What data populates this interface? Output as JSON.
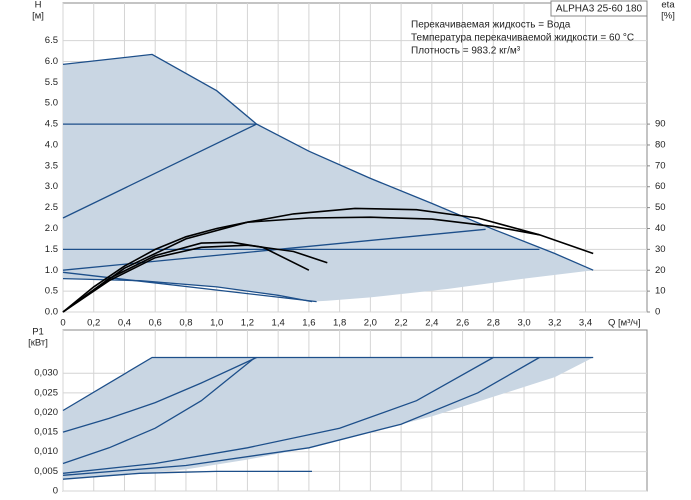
{
  "chart_data": [
    {
      "type": "line",
      "title": "ALPHA3 25-60 180",
      "annotations": [
        "Перекачиваемая жидкость = Вода",
        "Температура перекачиваемой жидкости = 60 °C",
        "Плотность = 983.2 кг/м³"
      ],
      "y_label": [
        "H",
        "[м]"
      ],
      "y2_label": [
        "eta",
        "[%]"
      ],
      "x_label": "Q [м³/ч]",
      "xlim": [
        0,
        3.8
      ],
      "ylim": [
        0,
        7.4
      ],
      "y2lim": [
        0,
        148
      ],
      "xticks": [
        0,
        {
          "value": 0.2,
          "label": "0,2"
        },
        {
          "value": 0.4,
          "label": "0,4"
        },
        {
          "value": 0.6,
          "label": "0,6"
        },
        {
          "value": 0.8,
          "label": "0,8"
        },
        {
          "value": 1.0,
          "label": "1,0"
        },
        {
          "value": 1.2,
          "label": "1,2"
        },
        {
          "value": 1.4,
          "label": "1,4"
        },
        {
          "value": 1.6,
          "label": "1,6"
        },
        {
          "value": 1.8,
          "label": "1,8"
        },
        {
          "value": 2.0,
          "label": "2,0"
        },
        {
          "value": 2.2,
          "label": "2,2"
        },
        {
          "value": 2.4,
          "label": "2,4"
        },
        {
          "value": 2.6,
          "label": "2,6"
        },
        {
          "value": 2.8,
          "label": "2,8"
        },
        {
          "value": 3.0,
          "label": "3,0"
        },
        {
          "value": 3.2,
          "label": "3,2"
        },
        {
          "value": 3.4,
          "label": "3,4"
        }
      ],
      "yticks": [
        {
          "value": 0,
          "label": "0.0"
        },
        0.5,
        {
          "value": 1,
          "label": "1.0"
        },
        1.5,
        {
          "value": 2,
          "label": "2.0"
        },
        2.5,
        {
          "value": 3,
          "label": "3.0"
        },
        3.5,
        {
          "value": 4,
          "label": "4.0"
        },
        4.5,
        {
          "value": 5,
          "label": "5.0"
        },
        5.5,
        {
          "value": 6,
          "label": "6.0"
        },
        6.5
      ],
      "y2ticks": [
        0,
        10,
        20,
        30,
        40,
        50,
        60,
        70,
        80,
        90
      ],
      "grid": true,
      "series": [
        {
          "color": "#c9d6e3",
          "fill": true,
          "x": [
            0,
            0.58,
            1.0,
            1.26,
            1.6,
            2.0,
            2.4,
            2.8,
            3.2,
            3.45,
            3.0,
            2.5,
            2.0,
            1.72,
            1.62,
            1.4,
            1.0,
            0.5,
            0
          ],
          "values": [
            5.93,
            6.17,
            5.3,
            4.5,
            3.85,
            3.2,
            2.6,
            1.98,
            1.4,
            1.0,
            0.8,
            0.55,
            0.35,
            0.27,
            0.25,
            0.4,
            0.6,
            0.75,
            0.8
          ]
        },
        {
          "color": "#1d4f8a",
          "x": [
            0,
            0.58,
            1.0,
            1.26,
            1.6,
            2.0,
            2.4,
            2.8,
            3.2,
            3.45
          ],
          "values": [
            5.93,
            6.17,
            5.3,
            4.5,
            3.85,
            3.2,
            2.6,
            1.98,
            1.4,
            1.0
          ]
        },
        {
          "color": "#1d4f8a",
          "x": [
            0,
            1.26
          ],
          "values": [
            4.5,
            4.5
          ]
        },
        {
          "color": "#1d4f8a",
          "x": [
            0,
            1.26
          ],
          "values": [
            2.25,
            4.5
          ]
        },
        {
          "color": "#1d4f8a",
          "x": [
            0,
            3.1
          ],
          "values": [
            1.5,
            1.5
          ]
        },
        {
          "color": "#1d4f8a",
          "x": [
            0,
            2.75
          ],
          "values": [
            1.0,
            1.98
          ]
        },
        {
          "color": "#1d4f8a",
          "x": [
            0,
            1.65
          ],
          "values": [
            0.95,
            0.25
          ]
        },
        {
          "color": "#1d4f8a",
          "x": [
            0,
            0.5,
            1.0,
            1.4,
            1.62
          ],
          "values": [
            0.8,
            0.75,
            0.6,
            0.4,
            0.25
          ]
        },
        {
          "color": "#000000",
          "axis": "y2",
          "x": [
            0,
            0.2,
            0.4,
            0.6,
            0.8,
            1.0,
            1.2,
            1.5,
            1.9,
            2.3,
            2.7,
            3.1,
            3.45
          ],
          "values": [
            0,
            12,
            22,
            30,
            36,
            40,
            43,
            47,
            49.6,
            49,
            45,
            37,
            28
          ]
        },
        {
          "color": "#000000",
          "axis": "y2",
          "x": [
            0,
            0.4,
            0.8,
            1.2,
            1.6,
            2.0,
            2.4,
            2.8,
            3.1
          ],
          "values": [
            0,
            21,
            35,
            43,
            45,
            45.4,
            44.5,
            41,
            37
          ]
        },
        {
          "color": "#000000",
          "axis": "y2",
          "x": [
            0,
            0.3,
            0.6,
            0.9,
            1.1,
            1.3,
            1.6
          ],
          "values": [
            0,
            16,
            27,
            33,
            33.4,
            31,
            20
          ]
        },
        {
          "color": "#000000",
          "axis": "y2",
          "x": [
            0,
            0.3,
            0.6,
            0.9,
            1.2,
            1.5,
            1.72
          ],
          "values": [
            0,
            15,
            26,
            31,
            32,
            29,
            23.6
          ]
        }
      ]
    },
    {
      "type": "line",
      "y_label": [
        "P1",
        "[кВт]"
      ],
      "xlim": [
        0,
        3.8
      ],
      "ylim": [
        0,
        0.041
      ],
      "yticks": [
        0,
        {
          "value": 0.005,
          "label": "0,005"
        },
        {
          "value": 0.01,
          "label": "0,010"
        },
        {
          "value": 0.015,
          "label": "0,015"
        },
        {
          "value": 0.02,
          "label": "0,020"
        },
        {
          "value": 0.025,
          "label": "0,025"
        },
        {
          "value": 0.03,
          "label": "0,030"
        }
      ],
      "grid": true,
      "series": [
        {
          "color": "#c9d6e3",
          "fill": true,
          "x": [
            0,
            0.58,
            3.45,
            3.2,
            2.8,
            2.4,
            2.0,
            1.6,
            1.2,
            0.8,
            0.4,
            0
          ],
          "values": [
            0.0205,
            0.034,
            0.034,
            0.029,
            0.024,
            0.019,
            0.015,
            0.011,
            0.008,
            0.0055,
            0.004,
            0.003
          ]
        },
        {
          "color": "#1d4f8a",
          "x": [
            0,
            0.58,
            3.45
          ],
          "values": [
            0.0205,
            0.034,
            0.034
          ]
        },
        {
          "color": "#1d4f8a",
          "x": [
            0,
            0.3,
            0.6,
            0.9,
            1.26
          ],
          "values": [
            0.015,
            0.0185,
            0.0225,
            0.0275,
            0.034
          ]
        },
        {
          "color": "#1d4f8a",
          "x": [
            0,
            0.3,
            0.6,
            0.9,
            1.25
          ],
          "values": [
            0.007,
            0.011,
            0.016,
            0.023,
            0.034
          ]
        },
        {
          "color": "#1d4f8a",
          "x": [
            0,
            0.6,
            1.2,
            1.8,
            2.3,
            2.8
          ],
          "values": [
            0.0045,
            0.007,
            0.011,
            0.016,
            0.023,
            0.034
          ]
        },
        {
          "color": "#1d4f8a",
          "x": [
            0,
            0.8,
            1.6,
            2.2,
            2.7,
            3.1
          ],
          "values": [
            0.004,
            0.0065,
            0.011,
            0.017,
            0.025,
            0.034
          ]
        },
        {
          "color": "#1d4f8a",
          "x": [
            0,
            0.5,
            1.0,
            1.62
          ],
          "values": [
            0.003,
            0.0045,
            0.005,
            0.005
          ]
        }
      ]
    }
  ]
}
